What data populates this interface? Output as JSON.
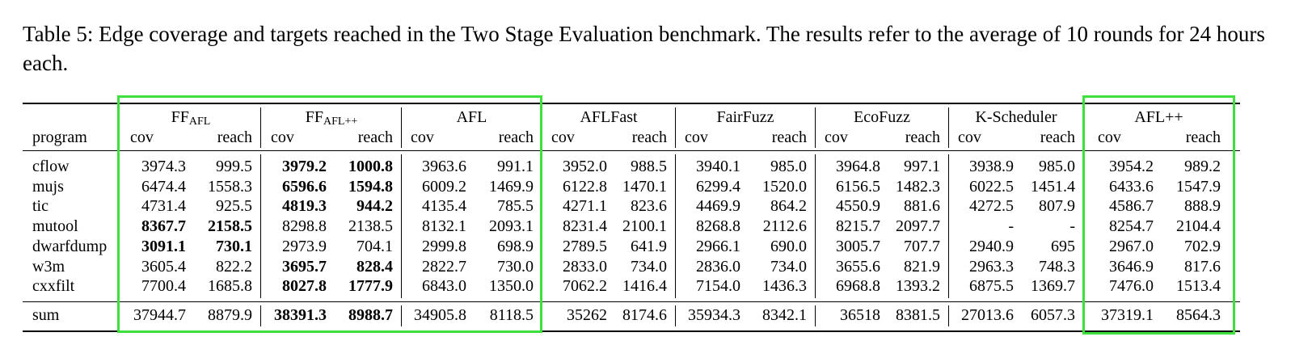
{
  "caption": "Table 5: Edge coverage and targets reached in the Two Stage Evaluation benchmark. The results refer to the average of 10 rounds for 24 hours each.",
  "header": {
    "program_label": "program",
    "cov_label": "cov",
    "reach_label": "reach",
    "groups": [
      {
        "name": "FF",
        "sub": "AFL"
      },
      {
        "name": "FF",
        "sub": "AFL++"
      },
      {
        "name": "AFL",
        "sub": ""
      },
      {
        "name": "AFLFast",
        "sub": ""
      },
      {
        "name": "FairFuzz",
        "sub": ""
      },
      {
        "name": "EcoFuzz",
        "sub": ""
      },
      {
        "name": "K-Scheduler",
        "sub": ""
      },
      {
        "name": "AFL++",
        "sub": ""
      }
    ]
  },
  "rows": [
    {
      "program": "cflow",
      "values": [
        "3974.3",
        "999.5",
        "3979.2",
        "1000.8",
        "3963.6",
        "991.1",
        "3952.0",
        "988.5",
        "3940.1",
        "985.0",
        "3964.8",
        "997.1",
        "3938.9",
        "985.0",
        "3954.2",
        "989.2"
      ],
      "bold": [
        2,
        3
      ]
    },
    {
      "program": "mujs",
      "values": [
        "6474.4",
        "1558.3",
        "6596.6",
        "1594.8",
        "6009.2",
        "1469.9",
        "6122.8",
        "1470.1",
        "6299.4",
        "1520.0",
        "6156.5",
        "1482.3",
        "6022.5",
        "1451.4",
        "6433.6",
        "1547.9"
      ],
      "bold": [
        2,
        3
      ]
    },
    {
      "program": "tic",
      "values": [
        "4731.4",
        "925.5",
        "4819.3",
        "944.2",
        "4135.4",
        "785.5",
        "4271.1",
        "823.6",
        "4469.9",
        "864.2",
        "4550.9",
        "881.6",
        "4272.5",
        "807.9",
        "4586.7",
        "888.9"
      ],
      "bold": [
        2,
        3
      ]
    },
    {
      "program": "mutool",
      "values": [
        "8367.7",
        "2158.5",
        "8298.8",
        "2138.5",
        "8132.1",
        "2093.1",
        "8231.4",
        "2100.1",
        "8268.8",
        "2112.6",
        "8215.7",
        "2097.7",
        "-",
        "-",
        "8254.7",
        "2104.4"
      ],
      "bold": [
        0,
        1
      ]
    },
    {
      "program": "dwarfdump",
      "values": [
        "3091.1",
        "730.1",
        "2973.9",
        "704.1",
        "2999.8",
        "698.9",
        "2789.5",
        "641.9",
        "2966.1",
        "690.0",
        "3005.7",
        "707.7",
        "2940.9",
        "695",
        "2967.0",
        "702.9"
      ],
      "bold": [
        0,
        1
      ]
    },
    {
      "program": "w3m",
      "values": [
        "3605.4",
        "822.2",
        "3695.7",
        "828.4",
        "2822.7",
        "730.0",
        "2833.0",
        "734.0",
        "2836.0",
        "734.0",
        "3655.6",
        "821.9",
        "2963.3",
        "748.3",
        "3646.9",
        "817.6"
      ],
      "bold": [
        2,
        3
      ]
    },
    {
      "program": "cxxfilt",
      "values": [
        "7700.4",
        "1685.8",
        "8027.8",
        "1777.9",
        "6843.0",
        "1350.0",
        "7062.2",
        "1416.4",
        "7154.0",
        "1436.3",
        "6968.8",
        "1393.2",
        "6875.5",
        "1369.7",
        "7476.0",
        "1513.4"
      ],
      "bold": [
        2,
        3
      ]
    }
  ],
  "sum": {
    "program": "sum",
    "values": [
      "37944.7",
      "8879.9",
      "38391.3",
      "8988.7",
      "34905.8",
      "8118.5",
      "35262",
      "8174.6",
      "35934.3",
      "8342.1",
      "36518",
      "8381.5",
      "27013.6",
      "6057.3",
      "37319.1",
      "8564.3"
    ],
    "bold": [
      2,
      3
    ]
  },
  "highlight_color": "#3de03d"
}
